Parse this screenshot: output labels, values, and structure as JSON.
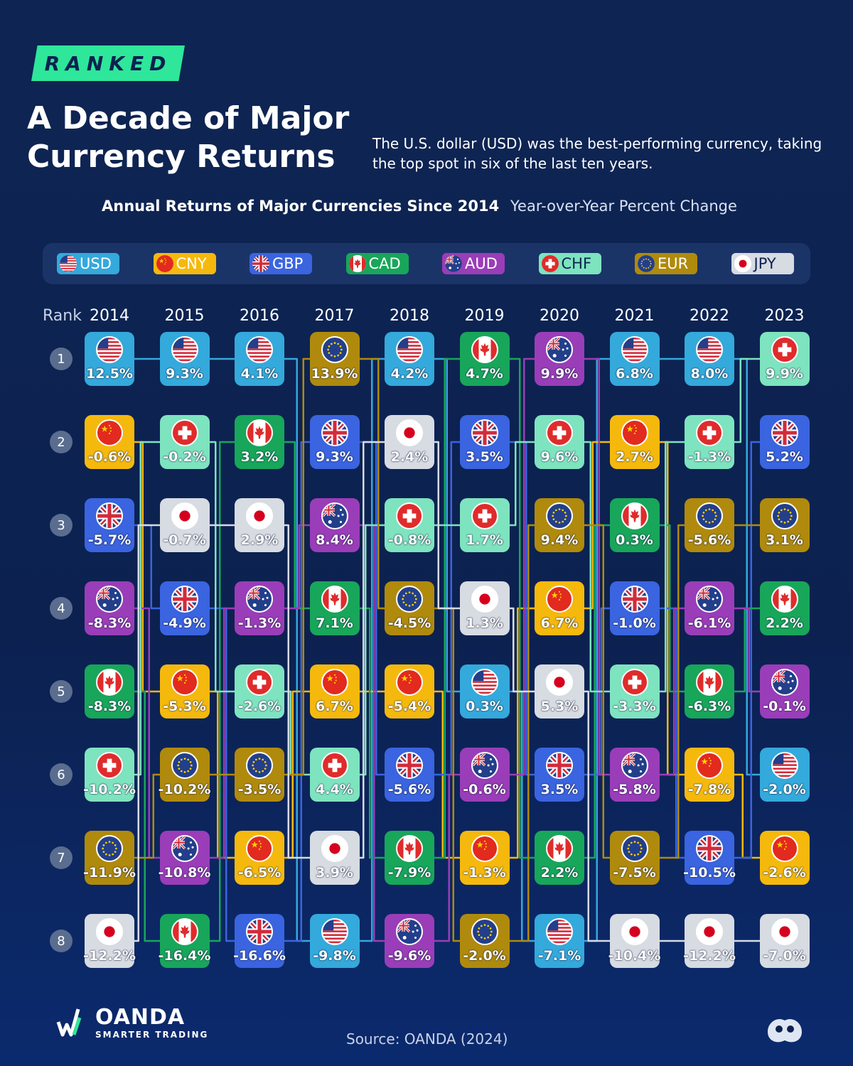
{
  "badge": "RANKED",
  "title": "A Decade of Major Currency Returns",
  "subtitle": "The U.S. dollar (USD) was the best-performing currency, taking the top spot in six of the last ten years.",
  "chart_title": "Annual Returns of Major Currencies Since 2014",
  "chart_subtitle": "Year-over-Year Percent Change",
  "rank_header": "Rank",
  "source": "Source: OANDA (2024)",
  "brand": {
    "name": "OANDA",
    "tagline": "SMARTER TRADING"
  },
  "colors": {
    "USD": "#34a9db",
    "CNY": "#f5b90d",
    "GBP": "#3a64e0",
    "CAD": "#18a65a",
    "AUD": "#9a3db8",
    "CHF": "#7ee3bf",
    "EUR": "#b08a0c",
    "JPY": "#d7dbe2"
  },
  "legend": [
    {
      "code": "USD",
      "icon": "us-flag-icon"
    },
    {
      "code": "CNY",
      "icon": "china-flag-icon"
    },
    {
      "code": "GBP",
      "icon": "uk-flag-icon"
    },
    {
      "code": "CAD",
      "icon": "canada-flag-icon"
    },
    {
      "code": "AUD",
      "icon": "australia-flag-icon"
    },
    {
      "code": "CHF",
      "icon": "swiss-flag-icon"
    },
    {
      "code": "EUR",
      "icon": "eu-flag-icon"
    },
    {
      "code": "JPY",
      "icon": "japan-flag-icon"
    }
  ],
  "chart_data": {
    "type": "table",
    "x": [
      2014,
      2015,
      2016,
      2017,
      2018,
      2019,
      2020,
      2021,
      2022,
      2023
    ],
    "ranks": [
      1,
      2,
      3,
      4,
      5,
      6,
      7,
      8
    ],
    "rankings": [
      {
        "year": 2014,
        "entries": [
          [
            "USD",
            "12.5%"
          ],
          [
            "CNY",
            "-0.6%"
          ],
          [
            "GBP",
            "-5.7%"
          ],
          [
            "AUD",
            "-8.3%"
          ],
          [
            "CAD",
            "-8.3%"
          ],
          [
            "CHF",
            "-10.2%"
          ],
          [
            "EUR",
            "-11.9%"
          ],
          [
            "JPY",
            "-12.2%"
          ]
        ]
      },
      {
        "year": 2015,
        "entries": [
          [
            "USD",
            "9.3%"
          ],
          [
            "CHF",
            "-0.2%"
          ],
          [
            "JPY",
            "-0.7%"
          ],
          [
            "GBP",
            "-4.9%"
          ],
          [
            "CNY",
            "-5.3%"
          ],
          [
            "EUR",
            "-10.2%"
          ],
          [
            "AUD",
            "-10.8%"
          ],
          [
            "CAD",
            "-16.4%"
          ]
        ]
      },
      {
        "year": 2016,
        "entries": [
          [
            "USD",
            "4.1%"
          ],
          [
            "CAD",
            "3.2%"
          ],
          [
            "JPY",
            "2.9%"
          ],
          [
            "AUD",
            "-1.3%"
          ],
          [
            "CHF",
            "-2.6%"
          ],
          [
            "EUR",
            "-3.5%"
          ],
          [
            "CNY",
            "-6.5%"
          ],
          [
            "GBP",
            "-16.6%"
          ]
        ]
      },
      {
        "year": 2017,
        "entries": [
          [
            "EUR",
            "13.9%"
          ],
          [
            "GBP",
            "9.3%"
          ],
          [
            "AUD",
            "8.4%"
          ],
          [
            "CAD",
            "7.1%"
          ],
          [
            "CNY",
            "6.7%"
          ],
          [
            "CHF",
            "4.4%"
          ],
          [
            "JPY",
            "3.9%"
          ],
          [
            "USD",
            "-9.8%"
          ]
        ]
      },
      {
        "year": 2018,
        "entries": [
          [
            "USD",
            "4.2%"
          ],
          [
            "JPY",
            "2.4%"
          ],
          [
            "CHF",
            "-0.8%"
          ],
          [
            "EUR",
            "-4.5%"
          ],
          [
            "CNY",
            "-5.4%"
          ],
          [
            "GBP",
            "-5.6%"
          ],
          [
            "CAD",
            "-7.9%"
          ],
          [
            "AUD",
            "-9.6%"
          ]
        ]
      },
      {
        "year": 2019,
        "entries": [
          [
            "CAD",
            "4.7%"
          ],
          [
            "GBP",
            "3.5%"
          ],
          [
            "CHF",
            "1.7%"
          ],
          [
            "JPY",
            "1.3%"
          ],
          [
            "USD",
            "0.3%"
          ],
          [
            "AUD",
            "-0.6%"
          ],
          [
            "CNY",
            "-1.3%"
          ],
          [
            "EUR",
            "-2.0%"
          ]
        ]
      },
      {
        "year": 2020,
        "entries": [
          [
            "AUD",
            "9.9%"
          ],
          [
            "CHF",
            "9.6%"
          ],
          [
            "EUR",
            "9.4%"
          ],
          [
            "CNY",
            "6.7%"
          ],
          [
            "JPY",
            "5.3%"
          ],
          [
            "GBP",
            "3.5%"
          ],
          [
            "CAD",
            "2.2%"
          ],
          [
            "USD",
            "-7.1%"
          ]
        ]
      },
      {
        "year": 2021,
        "entries": [
          [
            "USD",
            "6.8%"
          ],
          [
            "CNY",
            "2.7%"
          ],
          [
            "CAD",
            "0.3%"
          ],
          [
            "GBP",
            "-1.0%"
          ],
          [
            "CHF",
            "-3.3%"
          ],
          [
            "AUD",
            "-5.8%"
          ],
          [
            "EUR",
            "-7.5%"
          ],
          [
            "JPY",
            "-10.4%"
          ]
        ]
      },
      {
        "year": 2022,
        "entries": [
          [
            "USD",
            "8.0%"
          ],
          [
            "CHF",
            "-1.3%"
          ],
          [
            "EUR",
            "-5.6%"
          ],
          [
            "AUD",
            "-6.1%"
          ],
          [
            "CAD",
            "-6.3%"
          ],
          [
            "CNY",
            "-7.8%"
          ],
          [
            "GBP",
            "-10.5%"
          ],
          [
            "JPY",
            "-12.2%"
          ]
        ]
      },
      {
        "year": 2023,
        "entries": [
          [
            "CHF",
            "9.9%"
          ],
          [
            "GBP",
            "5.2%"
          ],
          [
            "EUR",
            "3.1%"
          ],
          [
            "CAD",
            "2.2%"
          ],
          [
            "AUD",
            "-0.1%"
          ],
          [
            "USD",
            "-2.0%"
          ],
          [
            "CNY",
            "-2.6%"
          ],
          [
            "JPY",
            "-7.0%"
          ]
        ]
      }
    ]
  }
}
